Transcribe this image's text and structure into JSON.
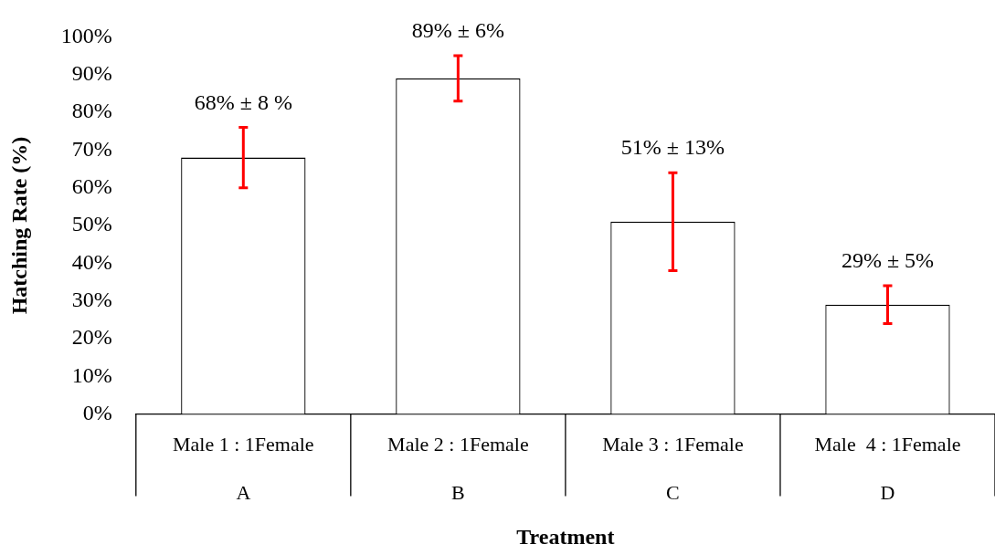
{
  "chart_data": {
    "type": "bar",
    "xlabel": "Treatment",
    "ylabel": "Hatching Rate (%)",
    "categories": [
      "Male 1 : 1Female\nA",
      "Male 2 : 1Female\nB",
      "Male 3 : 1Female\nC",
      "Male  4 : 1Female\nD"
    ],
    "values": [
      68,
      89,
      51,
      29
    ],
    "errors": [
      8,
      6,
      13,
      5
    ],
    "value_labels": [
      "68% ± 8 %",
      "89% ± 6%",
      "51% ± 13%",
      "29% ± 5%"
    ],
    "color": "#ffffff",
    "ylim": [
      0,
      100
    ],
    "yticks": [
      {
        "value": 0,
        "label": "0%"
      },
      {
        "value": 10,
        "label": "10%"
      },
      {
        "value": 20,
        "label": "20%"
      },
      {
        "value": 30,
        "label": "30%"
      },
      {
        "value": 40,
        "label": "40%"
      },
      {
        "value": 50,
        "label": "50%"
      },
      {
        "value": 60,
        "label": "60%"
      },
      {
        "value": 70,
        "label": "70%"
      },
      {
        "value": 80,
        "label": "80%"
      },
      {
        "value": 90,
        "label": "90%"
      },
      {
        "value": 100,
        "label": "100%"
      }
    ],
    "grid": false,
    "legend": false
  }
}
